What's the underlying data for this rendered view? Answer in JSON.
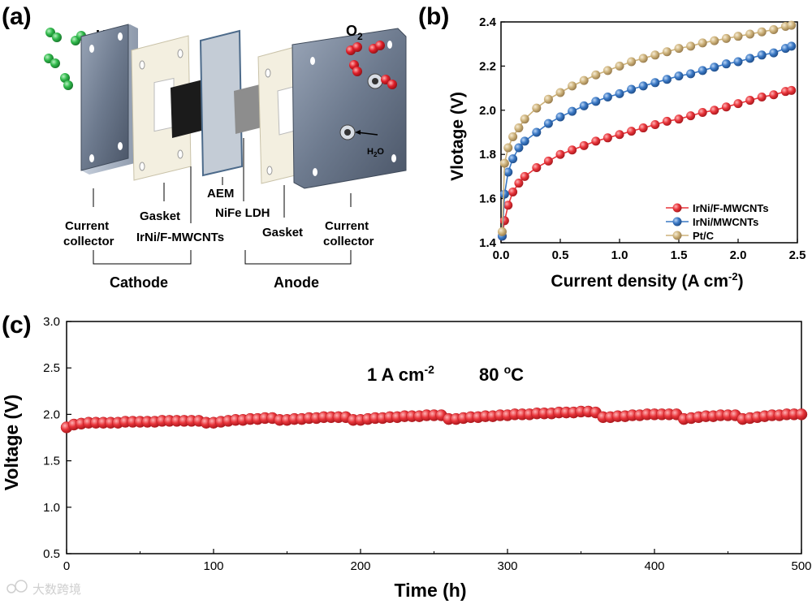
{
  "panel_a": {
    "label": "(a)",
    "h2": "H",
    "h2_sub": "2",
    "o2": "O",
    "o2_sub": "2",
    "h2o": "H",
    "h2o_sub": "2",
    "h2o_end": "O",
    "labels": {
      "current_collector_left_1": "Current",
      "current_collector_left_2": "collector",
      "gasket_left": "Gasket",
      "catalyst_left": "IrNi/F-MWCNTs",
      "aem": "AEM",
      "nife": "NiFe LDH",
      "gasket_right": "Gasket",
      "current_collector_right_1": "Current",
      "current_collector_right_2": "collector",
      "cathode": "Cathode",
      "anode": "Anode"
    },
    "colors": {
      "h2_gas": "#2fb84a",
      "o2_gas": "#e0202a"
    }
  },
  "chart_data": [
    {
      "panel": "(b)",
      "type": "line",
      "title": "",
      "xlabel": "Current density (A cm",
      "xlabel_sup": "-2",
      "xlabel_end": ")",
      "ylabel": "Vlotage (V)",
      "xlim": [
        0,
        2.5
      ],
      "ylim": [
        1.4,
        2.4
      ],
      "xticks": [
        "0.0",
        "0.5",
        "1.0",
        "1.5",
        "2.0",
        "2.5"
      ],
      "yticks": [
        "1.4",
        "1.6",
        "1.8",
        "2.0",
        "2.2",
        "2.4"
      ],
      "legend_position": "bottom-right",
      "series": [
        {
          "name": "IrNi/F-MWCNTs",
          "color": "#e8343a",
          "x": [
            0.01,
            0.03,
            0.06,
            0.1,
            0.15,
            0.2,
            0.3,
            0.4,
            0.5,
            0.6,
            0.7,
            0.8,
            0.9,
            1.0,
            1.1,
            1.2,
            1.3,
            1.4,
            1.5,
            1.6,
            1.7,
            1.8,
            1.9,
            2.0,
            2.1,
            2.2,
            2.3,
            2.4,
            2.45
          ],
          "y": [
            1.43,
            1.5,
            1.57,
            1.63,
            1.67,
            1.7,
            1.74,
            1.77,
            1.8,
            1.82,
            1.84,
            1.86,
            1.875,
            1.89,
            1.905,
            1.92,
            1.935,
            1.95,
            1.96,
            1.975,
            1.99,
            2.0,
            2.015,
            2.03,
            2.045,
            2.06,
            2.07,
            2.085,
            2.09
          ]
        },
        {
          "name": "IrNi/MWCNTs",
          "color": "#3a78c4",
          "x": [
            0.01,
            0.03,
            0.06,
            0.1,
            0.15,
            0.2,
            0.3,
            0.4,
            0.5,
            0.6,
            0.7,
            0.8,
            0.9,
            1.0,
            1.1,
            1.2,
            1.3,
            1.4,
            1.5,
            1.6,
            1.7,
            1.8,
            1.9,
            2.0,
            2.1,
            2.2,
            2.3,
            2.4,
            2.45
          ],
          "y": [
            1.43,
            1.62,
            1.72,
            1.78,
            1.83,
            1.86,
            1.9,
            1.94,
            1.97,
            1.995,
            2.02,
            2.04,
            2.06,
            2.075,
            2.095,
            2.11,
            2.125,
            2.14,
            2.155,
            2.165,
            2.18,
            2.195,
            2.21,
            2.22,
            2.235,
            2.25,
            2.26,
            2.28,
            2.29
          ]
        },
        {
          "name": "Pt/C",
          "color": "#cdb27a",
          "x": [
            0.01,
            0.03,
            0.06,
            0.1,
            0.15,
            0.2,
            0.3,
            0.4,
            0.5,
            0.6,
            0.7,
            0.8,
            0.9,
            1.0,
            1.1,
            1.2,
            1.3,
            1.4,
            1.5,
            1.6,
            1.7,
            1.8,
            1.9,
            2.0,
            2.1,
            2.2,
            2.3,
            2.4,
            2.45
          ],
          "y": [
            1.45,
            1.76,
            1.83,
            1.88,
            1.92,
            1.96,
            2.01,
            2.05,
            2.08,
            2.11,
            2.135,
            2.16,
            2.18,
            2.2,
            2.22,
            2.235,
            2.25,
            2.265,
            2.28,
            2.29,
            2.305,
            2.315,
            2.325,
            2.335,
            2.345,
            2.355,
            2.365,
            2.38,
            2.385
          ]
        }
      ]
    },
    {
      "panel": "(c)",
      "type": "scatter",
      "title": "",
      "xlabel": "Time (h)",
      "ylabel": "Voltage (V)",
      "xlim": [
        0,
        500
      ],
      "ylim": [
        0.5,
        3.0
      ],
      "xticks": [
        "0",
        "100",
        "200",
        "300",
        "400",
        "500"
      ],
      "yticks": [
        "0.5",
        "1.0",
        "1.5",
        "2.0",
        "2.5",
        "3.0"
      ],
      "annotation_current": "1 A cm",
      "annotation_current_sup": "-2",
      "annotation_temp": "80 ",
      "annotation_temp_sup": "o",
      "annotation_temp_end": "C",
      "series": [
        {
          "name": "IrNi/F-MWCNTs stability",
          "color": "#e8343a",
          "x": [
            0,
            5,
            10,
            15,
            20,
            25,
            30,
            35,
            40,
            45,
            50,
            55,
            60,
            65,
            70,
            75,
            80,
            85,
            90,
            95,
            100,
            105,
            110,
            115,
            120,
            125,
            130,
            135,
            140,
            145,
            150,
            155,
            160,
            165,
            170,
            175,
            180,
            185,
            190,
            195,
            200,
            205,
            210,
            215,
            220,
            225,
            230,
            235,
            240,
            245,
            250,
            255,
            260,
            265,
            270,
            275,
            280,
            285,
            290,
            295,
            300,
            305,
            310,
            315,
            320,
            325,
            330,
            335,
            340,
            345,
            350,
            355,
            360,
            365,
            370,
            375,
            380,
            385,
            390,
            395,
            400,
            405,
            410,
            415,
            420,
            425,
            430,
            435,
            440,
            445,
            450,
            455,
            460,
            465,
            470,
            475,
            480,
            485,
            490,
            495,
            500
          ],
          "y": [
            1.86,
            1.89,
            1.9,
            1.91,
            1.91,
            1.91,
            1.91,
            1.91,
            1.92,
            1.92,
            1.92,
            1.92,
            1.92,
            1.93,
            1.93,
            1.93,
            1.93,
            1.93,
            1.93,
            1.91,
            1.91,
            1.92,
            1.93,
            1.94,
            1.94,
            1.95,
            1.95,
            1.96,
            1.96,
            1.94,
            1.94,
            1.95,
            1.95,
            1.96,
            1.96,
            1.97,
            1.97,
            1.97,
            1.97,
            1.94,
            1.94,
            1.95,
            1.96,
            1.96,
            1.97,
            1.97,
            1.98,
            1.98,
            1.98,
            1.99,
            1.99,
            1.99,
            1.95,
            1.95,
            1.96,
            1.97,
            1.97,
            1.98,
            1.98,
            1.99,
            1.99,
            2.0,
            2.0,
            2.0,
            2.01,
            2.01,
            2.01,
            2.02,
            2.02,
            2.02,
            2.03,
            2.03,
            2.02,
            1.97,
            1.97,
            1.98,
            1.98,
            1.99,
            1.99,
            2.0,
            2.0,
            2.0,
            2.0,
            2.0,
            1.95,
            1.96,
            1.97,
            1.98,
            1.98,
            1.99,
            1.99,
            1.99,
            1.95,
            1.96,
            1.97,
            1.98,
            1.99,
            1.99,
            2.0,
            2.0,
            2.0
          ]
        }
      ]
    }
  ],
  "watermark": "大数跨境"
}
